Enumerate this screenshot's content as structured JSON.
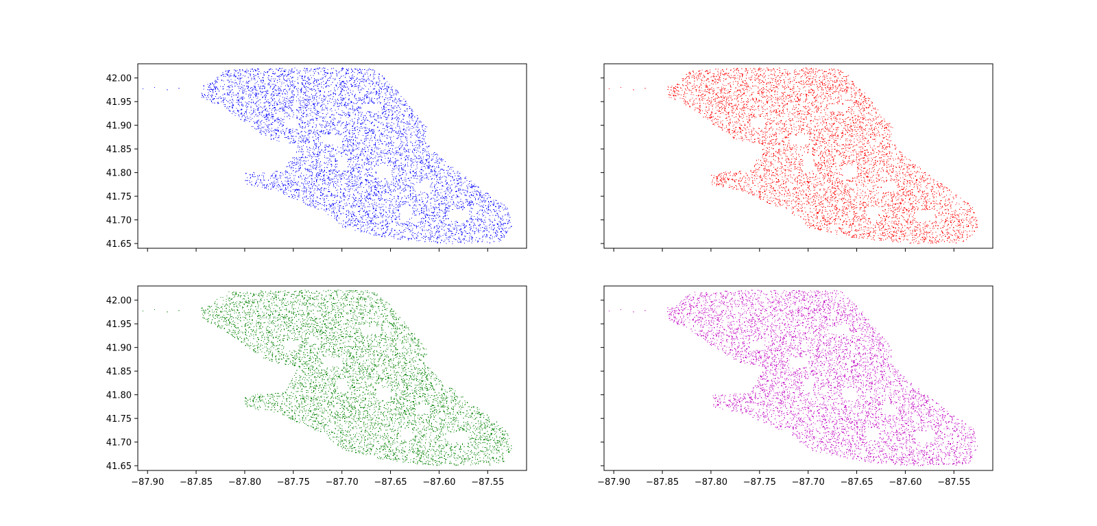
{
  "figure": {
    "background": "#ffffff"
  },
  "chart_data": [
    {
      "type": "scatter",
      "title": "",
      "xlabel": "",
      "ylabel": "",
      "xlim": [
        -87.91,
        -87.51
      ],
      "ylim": [
        41.64,
        42.03
      ],
      "x_ticks": [
        "−87.90",
        "−87.85",
        "−87.80",
        "−87.75",
        "−87.70",
        "−87.65",
        "−87.60",
        "−87.55"
      ],
      "x_tick_values": [
        -87.9,
        -87.85,
        -87.8,
        -87.75,
        -87.7,
        -87.65,
        -87.6,
        -87.55
      ],
      "x_tick_labels_visible": false,
      "y_ticks": [
        "42.00",
        "41.95",
        "41.90",
        "41.85",
        "41.80",
        "41.75",
        "41.70",
        "41.65"
      ],
      "y_tick_values": [
        42.0,
        41.95,
        41.9,
        41.85,
        41.8,
        41.75,
        41.7,
        41.65
      ],
      "y_tick_labels_visible": true,
      "grid": false,
      "series": [
        {
          "color": "#0000ff",
          "marker": "pixel"
        }
      ]
    },
    {
      "type": "scatter",
      "title": "",
      "xlabel": "",
      "ylabel": "",
      "xlim": [
        -87.91,
        -87.51
      ],
      "ylim": [
        41.64,
        42.03
      ],
      "x_ticks": [
        "−87.90",
        "−87.85",
        "−87.80",
        "−87.75",
        "−87.70",
        "−87.65",
        "−87.60",
        "−87.55"
      ],
      "x_tick_values": [
        -87.9,
        -87.85,
        -87.8,
        -87.75,
        -87.7,
        -87.65,
        -87.6,
        -87.55
      ],
      "x_tick_labels_visible": false,
      "y_ticks": [
        "42.00",
        "41.95",
        "41.90",
        "41.85",
        "41.80",
        "41.75",
        "41.70",
        "41.65"
      ],
      "y_tick_values": [
        42.0,
        41.95,
        41.9,
        41.85,
        41.8,
        41.75,
        41.7,
        41.65
      ],
      "y_tick_labels_visible": false,
      "grid": false,
      "series": [
        {
          "color": "#ff0000",
          "marker": "pixel"
        }
      ]
    },
    {
      "type": "scatter",
      "title": "",
      "xlabel": "",
      "ylabel": "",
      "xlim": [
        -87.91,
        -87.51
      ],
      "ylim": [
        41.64,
        42.03
      ],
      "x_ticks": [
        "−87.90",
        "−87.85",
        "−87.80",
        "−87.75",
        "−87.70",
        "−87.65",
        "−87.60",
        "−87.55"
      ],
      "x_tick_values": [
        -87.9,
        -87.85,
        -87.8,
        -87.75,
        -87.7,
        -87.65,
        -87.6,
        -87.55
      ],
      "x_tick_labels_visible": true,
      "y_ticks": [
        "42.00",
        "41.95",
        "41.90",
        "41.85",
        "41.80",
        "41.75",
        "41.70",
        "41.65"
      ],
      "y_tick_values": [
        42.0,
        41.95,
        41.9,
        41.85,
        41.8,
        41.75,
        41.7,
        41.65
      ],
      "y_tick_labels_visible": true,
      "grid": false,
      "series": [
        {
          "color": "#008000",
          "marker": "pixel"
        }
      ]
    },
    {
      "type": "scatter",
      "title": "",
      "xlabel": "",
      "ylabel": "",
      "xlim": [
        -87.91,
        -87.51
      ],
      "ylim": [
        41.64,
        42.03
      ],
      "x_ticks": [
        "−87.90",
        "−87.85",
        "−87.80",
        "−87.75",
        "−87.70",
        "−87.65",
        "−87.60",
        "−87.55"
      ],
      "x_tick_values": [
        -87.9,
        -87.85,
        -87.8,
        -87.75,
        -87.7,
        -87.65,
        -87.6,
        -87.55
      ],
      "x_tick_labels_visible": true,
      "y_ticks": [
        "42.00",
        "41.95",
        "41.90",
        "41.85",
        "41.80",
        "41.75",
        "41.70",
        "41.65"
      ],
      "y_tick_values": [
        42.0,
        41.95,
        41.9,
        41.85,
        41.8,
        41.75,
        41.7,
        41.65
      ],
      "y_tick_labels_visible": false,
      "grid": false,
      "series": [
        {
          "color": "#bf00bf",
          "marker": "pixel"
        }
      ]
    }
  ]
}
